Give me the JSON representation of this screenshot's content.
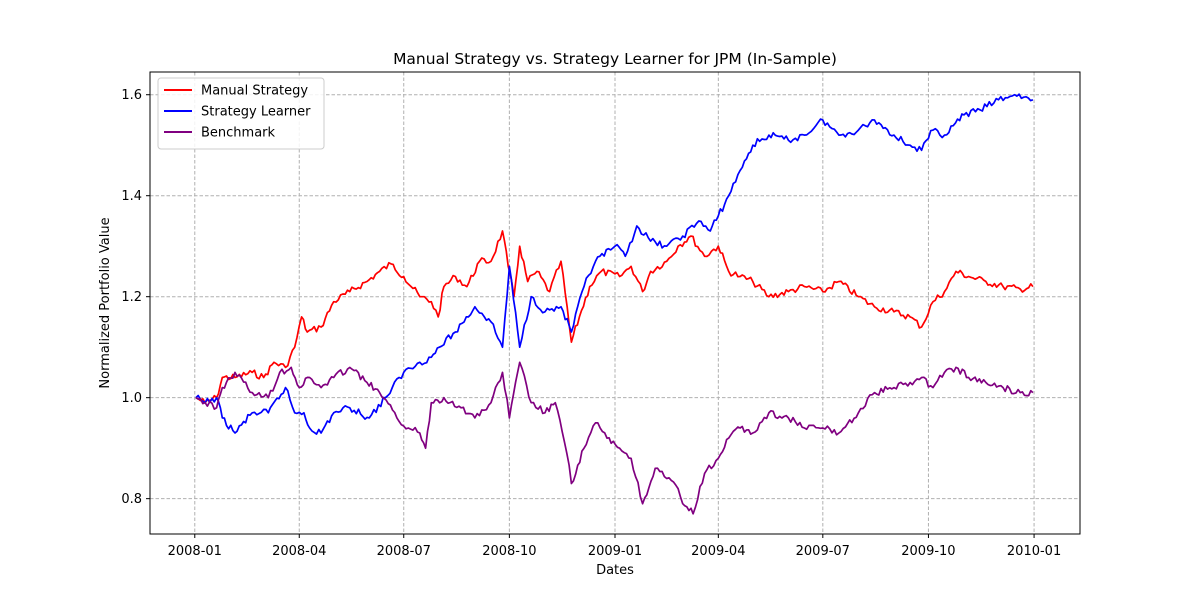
{
  "chart_data": {
    "type": "line",
    "title": "Manual Strategy vs. Strategy Learner for JPM (In-Sample)",
    "xlabel": "Dates",
    "ylabel": "Normalized Portfolio Value",
    "xlim": [
      "2007-11-23",
      "2010-02-10"
    ],
    "ylim": [
      0.73,
      1.645
    ],
    "x_ticks": [
      "2008-01",
      "2008-04",
      "2008-07",
      "2008-10",
      "2009-01",
      "2009-04",
      "2009-07",
      "2009-10",
      "2010-01"
    ],
    "y_ticks": [
      0.8,
      1.0,
      1.2,
      1.4,
      1.6
    ],
    "y_tick_labels": [
      "0.8",
      "1.0",
      "1.2",
      "1.4",
      "1.6"
    ],
    "grid": true,
    "legend_position": "top-left",
    "series": [
      {
        "name": "Manual Strategy",
        "color": "#ff0000",
        "points": [
          [
            "2008-01-02",
            1.0
          ],
          [
            "2008-01-10",
            0.99
          ],
          [
            "2008-01-20",
            1.0
          ],
          [
            "2008-01-25",
            1.04
          ],
          [
            "2008-02-05",
            1.04
          ],
          [
            "2008-02-20",
            1.05
          ],
          [
            "2008-03-01",
            1.04
          ],
          [
            "2008-03-10",
            1.07
          ],
          [
            "2008-03-20",
            1.06
          ],
          [
            "2008-03-28",
            1.1
          ],
          [
            "2008-04-03",
            1.16
          ],
          [
            "2008-04-08",
            1.13
          ],
          [
            "2008-04-20",
            1.14
          ],
          [
            "2008-05-01",
            1.19
          ],
          [
            "2008-05-15",
            1.21
          ],
          [
            "2008-05-30",
            1.23
          ],
          [
            "2008-06-10",
            1.25
          ],
          [
            "2008-06-20",
            1.265
          ],
          [
            "2008-07-01",
            1.24
          ],
          [
            "2008-07-15",
            1.2
          ],
          [
            "2008-07-25",
            1.19
          ],
          [
            "2008-07-31",
            1.16
          ],
          [
            "2008-08-05",
            1.22
          ],
          [
            "2008-08-15",
            1.24
          ],
          [
            "2008-08-25",
            1.22
          ],
          [
            "2008-09-05",
            1.27
          ],
          [
            "2008-09-15",
            1.27
          ],
          [
            "2008-09-25",
            1.33
          ],
          [
            "2008-09-30",
            1.26
          ],
          [
            "2008-10-05",
            1.2
          ],
          [
            "2008-10-10",
            1.3
          ],
          [
            "2008-10-17",
            1.23
          ],
          [
            "2008-10-25",
            1.25
          ],
          [
            "2008-11-05",
            1.21
          ],
          [
            "2008-11-15",
            1.27
          ],
          [
            "2008-11-24",
            1.11
          ],
          [
            "2008-12-01",
            1.16
          ],
          [
            "2008-12-10",
            1.22
          ],
          [
            "2008-12-20",
            1.25
          ],
          [
            "2009-01-05",
            1.24
          ],
          [
            "2009-01-15",
            1.26
          ],
          [
            "2009-01-25",
            1.21
          ],
          [
            "2009-02-01",
            1.25
          ],
          [
            "2009-02-15",
            1.27
          ],
          [
            "2009-02-25",
            1.3
          ],
          [
            "2009-03-08",
            1.32
          ],
          [
            "2009-03-20",
            1.28
          ],
          [
            "2009-04-01",
            1.3
          ],
          [
            "2009-04-10",
            1.25
          ],
          [
            "2009-04-20",
            1.24
          ],
          [
            "2009-05-01",
            1.23
          ],
          [
            "2009-05-15",
            1.2
          ],
          [
            "2009-06-01",
            1.21
          ],
          [
            "2009-06-15",
            1.22
          ],
          [
            "2009-07-01",
            1.21
          ],
          [
            "2009-07-15",
            1.23
          ],
          [
            "2009-08-01",
            1.2
          ],
          [
            "2009-08-15",
            1.18
          ],
          [
            "2009-09-01",
            1.17
          ],
          [
            "2009-09-15",
            1.16
          ],
          [
            "2009-09-25",
            1.14
          ],
          [
            "2009-10-05",
            1.19
          ],
          [
            "2009-10-15",
            1.21
          ],
          [
            "2009-10-25",
            1.25
          ],
          [
            "2009-11-05",
            1.24
          ],
          [
            "2009-11-20",
            1.23
          ],
          [
            "2009-12-05",
            1.22
          ],
          [
            "2009-12-20",
            1.215
          ],
          [
            "2009-12-31",
            1.22
          ]
        ]
      },
      {
        "name": "Strategy Learner",
        "color": "#0000ff",
        "points": [
          [
            "2008-01-02",
            1.0
          ],
          [
            "2008-01-10",
            0.99
          ],
          [
            "2008-01-20",
            1.0
          ],
          [
            "2008-01-25",
            0.96
          ],
          [
            "2008-02-05",
            0.93
          ],
          [
            "2008-02-20",
            0.97
          ],
          [
            "2008-03-05",
            0.97
          ],
          [
            "2008-03-20",
            1.02
          ],
          [
            "2008-03-28",
            0.97
          ],
          [
            "2008-04-05",
            0.97
          ],
          [
            "2008-04-10",
            0.94
          ],
          [
            "2008-04-20",
            0.93
          ],
          [
            "2008-05-01",
            0.97
          ],
          [
            "2008-05-15",
            0.98
          ],
          [
            "2008-06-01",
            0.96
          ],
          [
            "2008-06-15",
            1.0
          ],
          [
            "2008-07-01",
            1.05
          ],
          [
            "2008-07-15",
            1.07
          ],
          [
            "2008-07-25",
            1.08
          ],
          [
            "2008-08-01",
            1.1
          ],
          [
            "2008-08-15",
            1.13
          ],
          [
            "2008-09-01",
            1.18
          ],
          [
            "2008-09-15",
            1.15
          ],
          [
            "2008-09-25",
            1.1
          ],
          [
            "2008-10-01",
            1.26
          ],
          [
            "2008-10-10",
            1.1
          ],
          [
            "2008-10-20",
            1.2
          ],
          [
            "2008-11-01",
            1.17
          ],
          [
            "2008-11-15",
            1.18
          ],
          [
            "2008-11-24",
            1.13
          ],
          [
            "2008-12-05",
            1.22
          ],
          [
            "2008-12-15",
            1.27
          ],
          [
            "2009-01-01",
            1.3
          ],
          [
            "2009-01-10",
            1.28
          ],
          [
            "2009-01-20",
            1.34
          ],
          [
            "2009-02-01",
            1.31
          ],
          [
            "2009-02-15",
            1.3
          ],
          [
            "2009-03-01",
            1.32
          ],
          [
            "2009-03-15",
            1.35
          ],
          [
            "2009-03-25",
            1.33
          ],
          [
            "2009-04-01",
            1.36
          ],
          [
            "2009-04-10",
            1.4
          ],
          [
            "2009-04-20",
            1.45
          ],
          [
            "2009-05-01",
            1.5
          ],
          [
            "2009-05-15",
            1.52
          ],
          [
            "2009-06-01",
            1.51
          ],
          [
            "2009-06-15",
            1.52
          ],
          [
            "2009-07-01",
            1.55
          ],
          [
            "2009-07-15",
            1.52
          ],
          [
            "2009-08-01",
            1.53
          ],
          [
            "2009-08-15",
            1.55
          ],
          [
            "2009-09-01",
            1.52
          ],
          [
            "2009-09-15",
            1.5
          ],
          [
            "2009-09-25",
            1.49
          ],
          [
            "2009-10-05",
            1.53
          ],
          [
            "2009-10-15",
            1.52
          ],
          [
            "2009-11-01",
            1.56
          ],
          [
            "2009-11-15",
            1.57
          ],
          [
            "2009-12-01",
            1.59
          ],
          [
            "2009-12-15",
            1.6
          ],
          [
            "2009-12-31",
            1.59
          ]
        ]
      },
      {
        "name": "Benchmark",
        "color": "#800080",
        "points": [
          [
            "2008-01-02",
            1.0
          ],
          [
            "2008-01-10",
            0.99
          ],
          [
            "2008-01-20",
            0.98
          ],
          [
            "2008-01-25",
            1.02
          ],
          [
            "2008-02-05",
            1.05
          ],
          [
            "2008-02-20",
            1.01
          ],
          [
            "2008-03-05",
            1.0
          ],
          [
            "2008-03-15",
            1.05
          ],
          [
            "2008-03-25",
            1.06
          ],
          [
            "2008-04-01",
            1.02
          ],
          [
            "2008-04-10",
            1.04
          ],
          [
            "2008-04-20",
            1.02
          ],
          [
            "2008-05-01",
            1.04
          ],
          [
            "2008-05-15",
            1.06
          ],
          [
            "2008-05-30",
            1.03
          ],
          [
            "2008-06-10",
            1.01
          ],
          [
            "2008-06-25",
            0.96
          ],
          [
            "2008-07-05",
            0.94
          ],
          [
            "2008-07-15",
            0.93
          ],
          [
            "2008-07-20",
            0.9
          ],
          [
            "2008-07-25",
            0.99
          ],
          [
            "2008-08-05",
            1.0
          ],
          [
            "2008-08-20",
            0.98
          ],
          [
            "2008-09-01",
            0.96
          ],
          [
            "2008-09-15",
            0.99
          ],
          [
            "2008-09-25",
            1.05
          ],
          [
            "2008-10-01",
            0.96
          ],
          [
            "2008-10-10",
            1.07
          ],
          [
            "2008-10-20",
            0.99
          ],
          [
            "2008-11-01",
            0.97
          ],
          [
            "2008-11-10",
            0.99
          ],
          [
            "2008-11-20",
            0.89
          ],
          [
            "2008-11-24",
            0.83
          ],
          [
            "2008-12-05",
            0.9
          ],
          [
            "2008-12-15",
            0.95
          ],
          [
            "2008-12-25",
            0.92
          ],
          [
            "2009-01-05",
            0.9
          ],
          [
            "2009-01-15",
            0.88
          ],
          [
            "2009-01-25",
            0.79
          ],
          [
            "2009-02-05",
            0.86
          ],
          [
            "2009-02-15",
            0.84
          ],
          [
            "2009-02-25",
            0.82
          ],
          [
            "2009-03-01",
            0.79
          ],
          [
            "2009-03-10",
            0.77
          ],
          [
            "2009-03-20",
            0.85
          ],
          [
            "2009-04-01",
            0.88
          ],
          [
            "2009-04-10",
            0.92
          ],
          [
            "2009-04-20",
            0.94
          ],
          [
            "2009-05-01",
            0.93
          ],
          [
            "2009-05-15",
            0.97
          ],
          [
            "2009-06-01",
            0.96
          ],
          [
            "2009-06-15",
            0.94
          ],
          [
            "2009-07-01",
            0.94
          ],
          [
            "2009-07-15",
            0.93
          ],
          [
            "2009-08-01",
            0.97
          ],
          [
            "2009-08-15",
            1.01
          ],
          [
            "2009-09-01",
            1.02
          ],
          [
            "2009-09-15",
            1.03
          ],
          [
            "2009-09-25",
            1.04
          ],
          [
            "2009-10-05",
            1.02
          ],
          [
            "2009-10-15",
            1.05
          ],
          [
            "2009-10-25",
            1.06
          ],
          [
            "2009-11-05",
            1.04
          ],
          [
            "2009-11-20",
            1.03
          ],
          [
            "2009-12-05",
            1.02
          ],
          [
            "2009-12-20",
            1.01
          ],
          [
            "2009-12-31",
            1.01
          ]
        ]
      }
    ]
  }
}
